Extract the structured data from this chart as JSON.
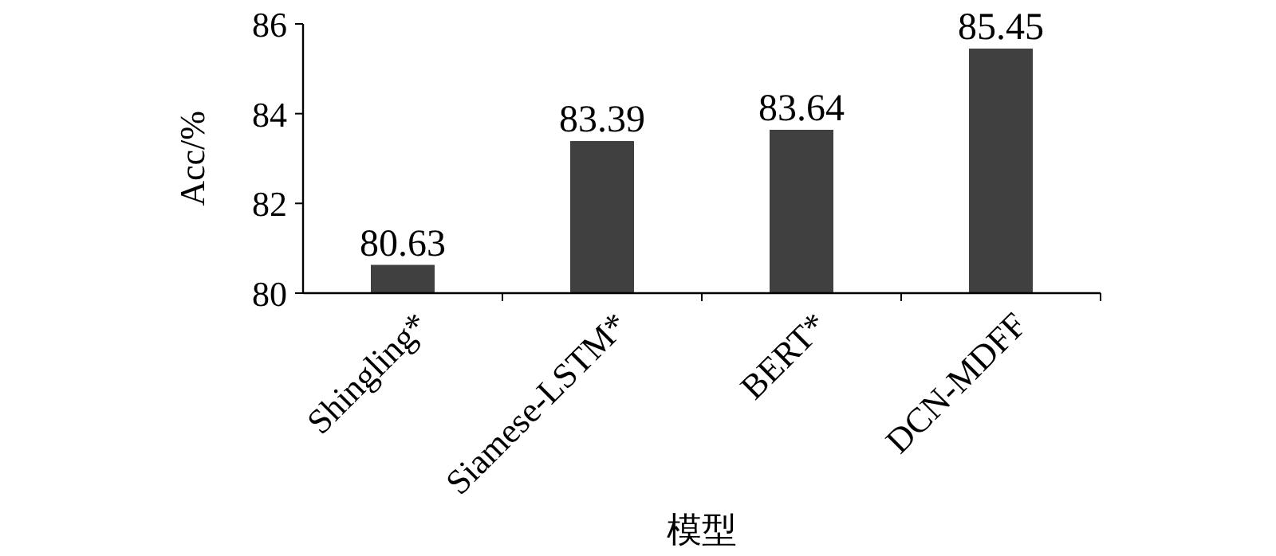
{
  "chart_data": {
    "type": "bar",
    "xlabel": "模型",
    "ylabel": "Acc/%",
    "categories": [
      "Shingling*",
      "Siamese-LSTM*",
      "BERT*",
      "DCN-MDFF"
    ],
    "values": [
      80.63,
      83.39,
      83.64,
      85.45
    ],
    "color": "#404040",
    "ylim": [
      80,
      86
    ],
    "yticks": [
      80,
      82,
      84,
      86
    ],
    "data_labels": true
  }
}
